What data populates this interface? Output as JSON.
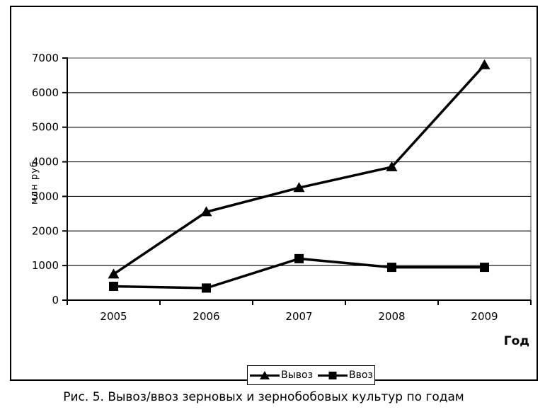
{
  "figure": {
    "caption": "Рис. 5. Вывоз/ввоз зерновых и зернобобовых культур по годам"
  },
  "chart_data": {
    "type": "line",
    "title": "",
    "categories": [
      "2005",
      "2006",
      "2007",
      "2008",
      "2009"
    ],
    "series": [
      {
        "name": "Вывоз",
        "marker": "triangle",
        "values": [
          750,
          2550,
          3250,
          3850,
          6800
        ]
      },
      {
        "name": "Ввоз",
        "marker": "square",
        "values": [
          400,
          350,
          1200,
          950,
          950
        ]
      }
    ],
    "xlabel": "Год",
    "ylabel": "млн руб.",
    "ylim": [
      0,
      7000
    ],
    "yticks": [
      0,
      1000,
      2000,
      3000,
      4000,
      5000,
      6000,
      7000
    ],
    "grid": true,
    "legend_position": "bottom",
    "colors": {
      "line": "#000000",
      "axis": "#000000",
      "gridline": "#1a1a1a",
      "plot_border": "#848484",
      "background": "#ffffff"
    }
  }
}
